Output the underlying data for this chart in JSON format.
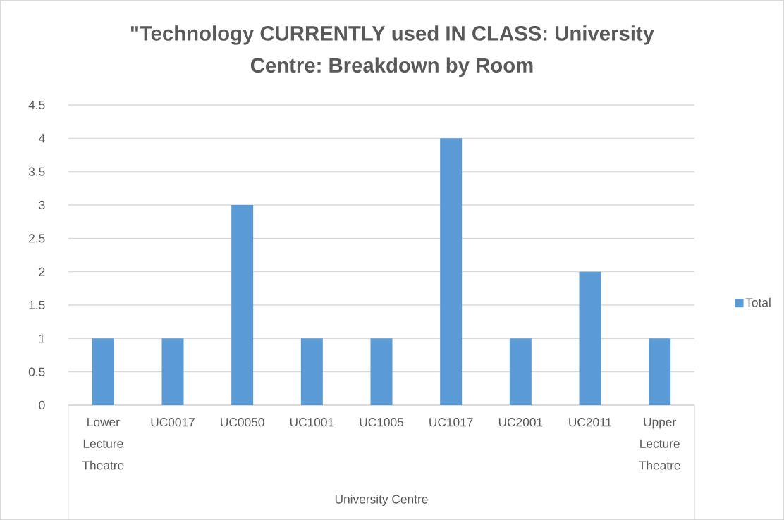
{
  "chart_data": {
    "type": "bar",
    "title": "\"Technology CURRENTLY used IN CLASS: University Centre: Breakdown by Room",
    "xlabel": "University Centre",
    "categories": [
      "Lower Lecture Theatre",
      "UC0017",
      "UC0050",
      "UC1001",
      "UC1005",
      "UC1017",
      "UC2001",
      "UC2011",
      "Upper Lecture Theatre"
    ],
    "series": [
      {
        "name": "Total",
        "color": "#5b9bd5",
        "values": [
          1,
          1,
          3,
          1,
          1,
          4,
          1,
          2,
          1
        ]
      }
    ],
    "ylim": [
      0,
      4.5
    ],
    "yticks": [
      0,
      0.5,
      1,
      1.5,
      2,
      2.5,
      3,
      3.5,
      4,
      4.5
    ],
    "grid": "y",
    "legend": "right"
  }
}
